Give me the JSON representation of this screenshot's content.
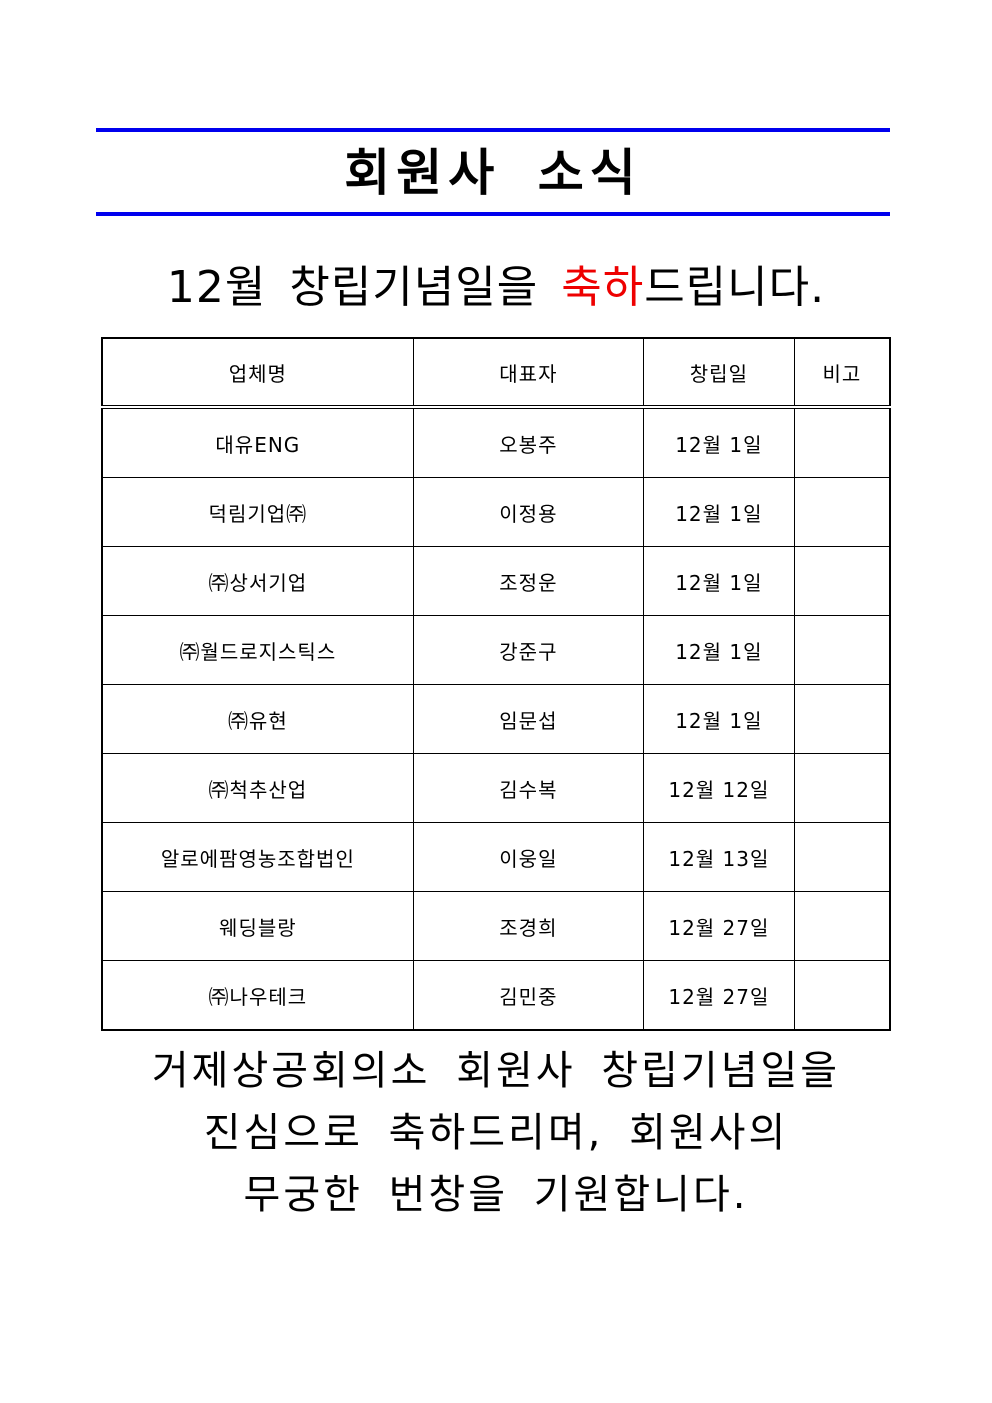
{
  "header": {
    "title": "회원사 소식",
    "rule_color": "#0000ee"
  },
  "subtitle": {
    "before": "12월 창립기념일을 ",
    "highlight": "축하",
    "after": "드립니다.",
    "highlight_color": "#ee0000"
  },
  "table": {
    "columns": [
      "업체명",
      "대표자",
      "창립일",
      "비고"
    ],
    "rows": [
      [
        "대유ENG",
        "오봉주",
        "12월 1일",
        ""
      ],
      [
        "덕림기업㈜",
        "이정용",
        "12월 1일",
        ""
      ],
      [
        "㈜상서기업",
        "조정운",
        "12월 1일",
        ""
      ],
      [
        "㈜월드로지스틱스",
        "강준구",
        "12월 1일",
        ""
      ],
      [
        "㈜유현",
        "임문섭",
        "12월 1일",
        ""
      ],
      [
        "㈜척추산업",
        "김수복",
        "12월 12일",
        ""
      ],
      [
        "알로에팜영농조합법인",
        "이웅일",
        "12월 13일",
        ""
      ],
      [
        "웨딩블랑",
        "조경희",
        "12월 27일",
        ""
      ],
      [
        "㈜나우테크",
        "김민중",
        "12월 27일",
        ""
      ]
    ]
  },
  "footer": {
    "lines": [
      "거제상공회의소 회원사 창립기념일을",
      "진심으로 축하드리며, 회원사의",
      "무궁한 번창을 기원합니다."
    ]
  }
}
